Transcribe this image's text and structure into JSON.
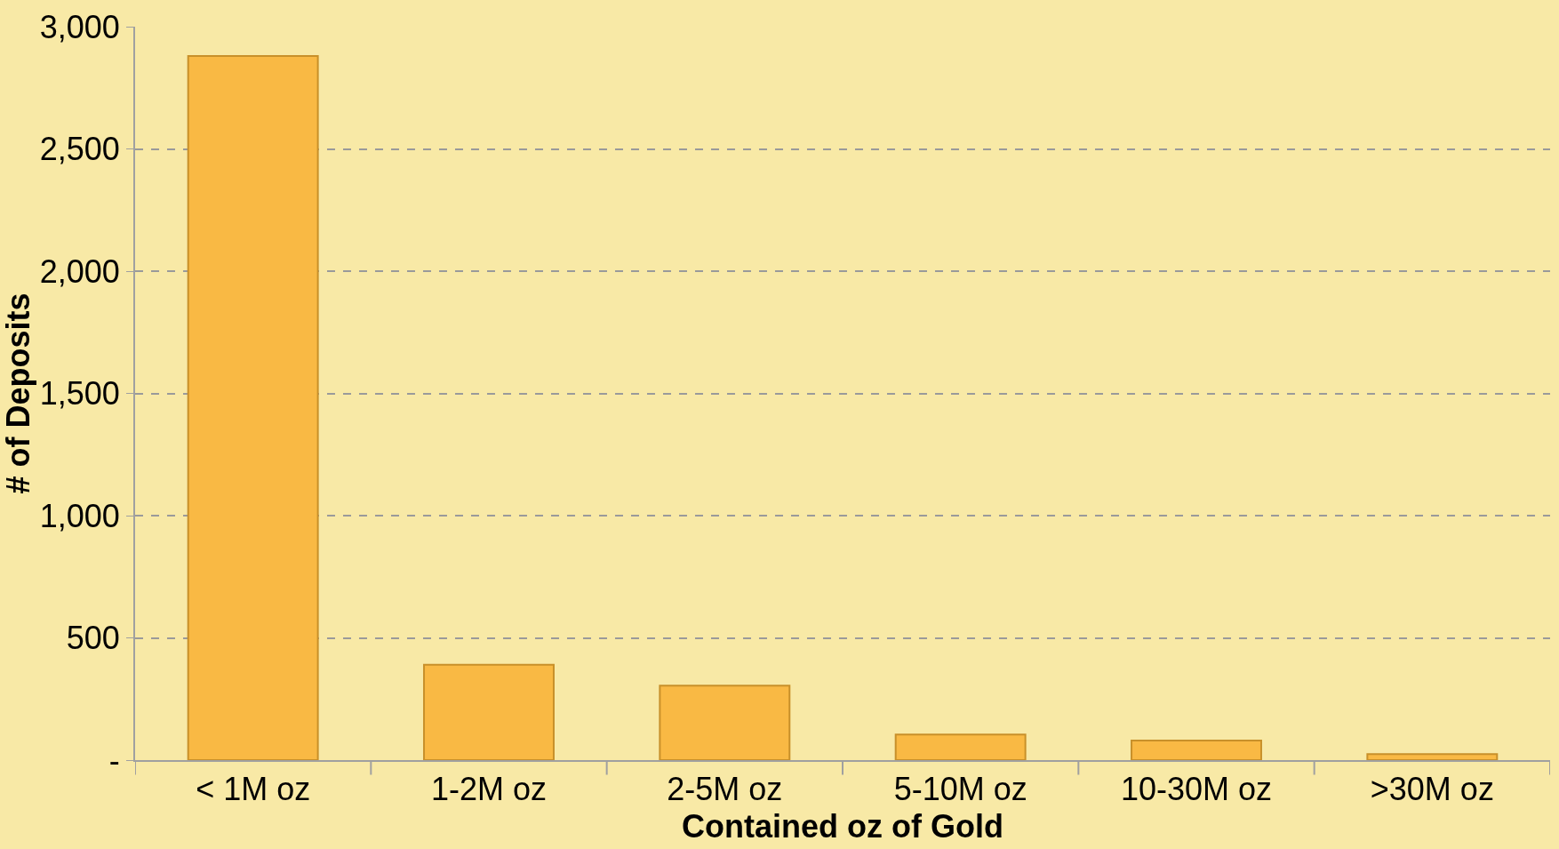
{
  "chart_data": {
    "type": "bar",
    "xlabel": "Contained oz of Gold",
    "ylabel": "# of Deposits",
    "categories": [
      "< 1M oz",
      "1-2M oz",
      "2-5M oz",
      "5-10M oz",
      "10-30M oz",
      ">30M oz"
    ],
    "values": [
      2880,
      390,
      305,
      105,
      80,
      25
    ],
    "color": "#f9b944",
    "ylim": [
      0,
      3000
    ],
    "yticks": [
      {
        "value": 0,
        "label": "-"
      },
      {
        "value": 500,
        "label": "500"
      },
      {
        "value": 1000,
        "label": "1,000"
      },
      {
        "value": 1500,
        "label": "1,500"
      },
      {
        "value": 2000,
        "label": "2,000"
      },
      {
        "value": 2500,
        "label": "2,500"
      },
      {
        "value": 3000,
        "label": "3,000"
      }
    ],
    "grid": "y"
  }
}
